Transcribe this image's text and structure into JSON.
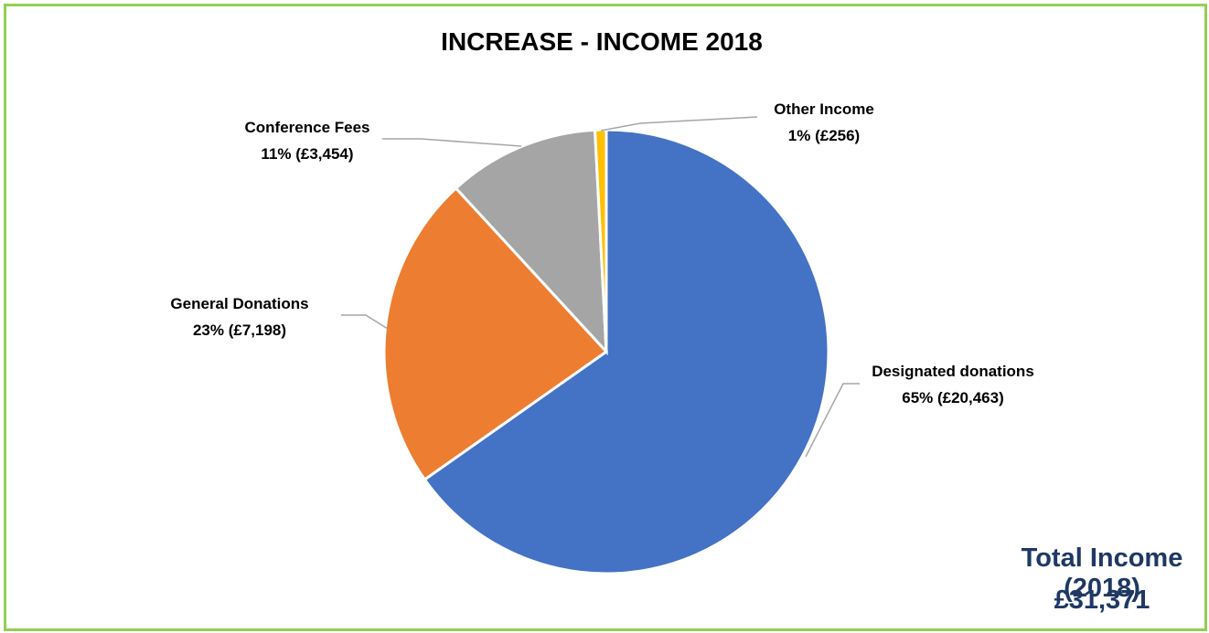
{
  "chart_data": {
    "type": "pie",
    "title": "INCREASE - INCOME 2018",
    "slices": [
      {
        "label": "Designated donations",
        "value": 20463,
        "percent_label": "65% (£20,463)",
        "color": "#4472C4"
      },
      {
        "label": "General Donations",
        "value": 7198,
        "percent_label": "23% (£7,198)",
        "color": "#ED7D31"
      },
      {
        "label": "Conference Fees",
        "value": 3454,
        "percent_label": "11% (£3,454)",
        "color": "#A5A5A5"
      },
      {
        "label": "Other Income",
        "value": 256,
        "percent_label": "1% (£256)",
        "color": "#FFC000"
      }
    ],
    "start_angle": "12 o'clock",
    "direction": "clockwise"
  },
  "annotation": {
    "total_label": "Total Income (2018)",
    "total_value": "£31,371"
  },
  "colors": {
    "border": "#92D050",
    "total_text": "#1F3864",
    "leader_line": "#A6A6A6"
  }
}
